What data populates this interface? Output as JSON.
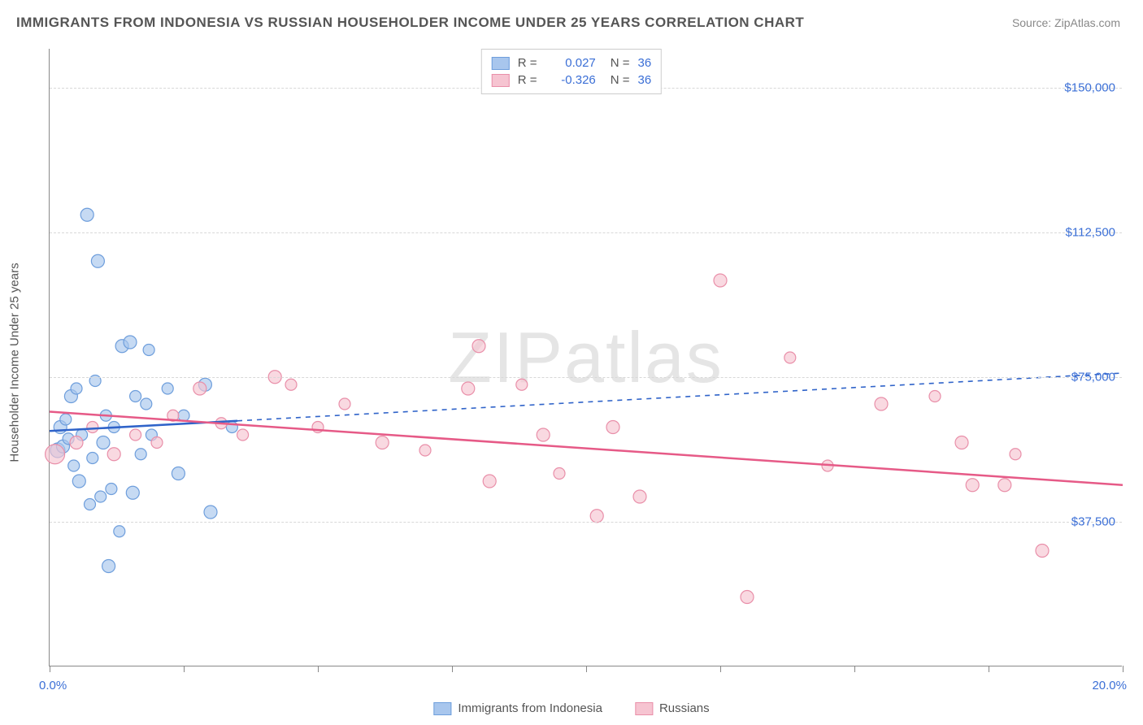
{
  "title": "IMMIGRANTS FROM INDONESIA VS RUSSIAN HOUSEHOLDER INCOME UNDER 25 YEARS CORRELATION CHART",
  "source_label": "Source: ZipAtlas.com",
  "watermark": "ZIPatlas",
  "yaxis_title": "Householder Income Under 25 years",
  "chart": {
    "type": "scatter",
    "xlim": [
      0,
      20
    ],
    "ylim": [
      0,
      160000
    ],
    "xtick_positions": [
      0,
      2.5,
      5,
      7.5,
      10,
      12.5,
      15,
      17.5,
      20
    ],
    "ytick_values": [
      37500,
      75000,
      112500,
      150000
    ],
    "ytick_labels": [
      "$37,500",
      "$75,000",
      "$112,500",
      "$150,000"
    ],
    "xaxis_label_left": "0.0%",
    "xaxis_label_right": "20.0%",
    "background_color": "#ffffff",
    "grid_color": "#d8d8d8",
    "series": [
      {
        "name": "Immigrants from Indonesia",
        "color_fill": "#a8c6ed",
        "color_stroke": "#6e9edc",
        "marker_opacity": 0.65,
        "R": "0.027",
        "N": "36",
        "trendline": {
          "color": "#2f63c9",
          "width": 2.5,
          "solid_until_x": 3.5,
          "dash_after": true,
          "y_at_x0": 61000,
          "y_at_xmax": 76000
        },
        "points": [
          {
            "x": 0.15,
            "y": 56000,
            "r": 9
          },
          {
            "x": 0.2,
            "y": 62000,
            "r": 8
          },
          {
            "x": 0.25,
            "y": 57000,
            "r": 8
          },
          {
            "x": 0.3,
            "y": 64000,
            "r": 7
          },
          {
            "x": 0.35,
            "y": 59000,
            "r": 7
          },
          {
            "x": 0.4,
            "y": 70000,
            "r": 8
          },
          {
            "x": 0.45,
            "y": 52000,
            "r": 7
          },
          {
            "x": 0.5,
            "y": 72000,
            "r": 7
          },
          {
            "x": 0.55,
            "y": 48000,
            "r": 8
          },
          {
            "x": 0.6,
            "y": 60000,
            "r": 7
          },
          {
            "x": 0.7,
            "y": 117000,
            "r": 8
          },
          {
            "x": 0.75,
            "y": 42000,
            "r": 7
          },
          {
            "x": 0.8,
            "y": 54000,
            "r": 7
          },
          {
            "x": 0.85,
            "y": 74000,
            "r": 7
          },
          {
            "x": 0.9,
            "y": 105000,
            "r": 8
          },
          {
            "x": 0.95,
            "y": 44000,
            "r": 7
          },
          {
            "x": 1.0,
            "y": 58000,
            "r": 8
          },
          {
            "x": 1.05,
            "y": 65000,
            "r": 7
          },
          {
            "x": 1.1,
            "y": 26000,
            "r": 8
          },
          {
            "x": 1.15,
            "y": 46000,
            "r": 7
          },
          {
            "x": 1.2,
            "y": 62000,
            "r": 7
          },
          {
            "x": 1.3,
            "y": 35000,
            "r": 7
          },
          {
            "x": 1.35,
            "y": 83000,
            "r": 8
          },
          {
            "x": 1.5,
            "y": 84000,
            "r": 8
          },
          {
            "x": 1.55,
            "y": 45000,
            "r": 8
          },
          {
            "x": 1.6,
            "y": 70000,
            "r": 7
          },
          {
            "x": 1.7,
            "y": 55000,
            "r": 7
          },
          {
            "x": 1.8,
            "y": 68000,
            "r": 7
          },
          {
            "x": 1.85,
            "y": 82000,
            "r": 7
          },
          {
            "x": 1.9,
            "y": 60000,
            "r": 7
          },
          {
            "x": 2.2,
            "y": 72000,
            "r": 7
          },
          {
            "x": 2.4,
            "y": 50000,
            "r": 8
          },
          {
            "x": 2.5,
            "y": 65000,
            "r": 7
          },
          {
            "x": 2.9,
            "y": 73000,
            "r": 8
          },
          {
            "x": 3.0,
            "y": 40000,
            "r": 8
          },
          {
            "x": 3.4,
            "y": 62000,
            "r": 7
          }
        ]
      },
      {
        "name": "Russians",
        "color_fill": "#f6c4d1",
        "color_stroke": "#e98fa9",
        "marker_opacity": 0.65,
        "R": "-0.326",
        "N": "36",
        "trendline": {
          "color": "#e65a87",
          "width": 2.5,
          "solid_until_x": 20,
          "dash_after": false,
          "y_at_x0": 66000,
          "y_at_xmax": 47000
        },
        "points": [
          {
            "x": 0.1,
            "y": 55000,
            "r": 12
          },
          {
            "x": 0.5,
            "y": 58000,
            "r": 8
          },
          {
            "x": 0.8,
            "y": 62000,
            "r": 7
          },
          {
            "x": 1.2,
            "y": 55000,
            "r": 8
          },
          {
            "x": 1.6,
            "y": 60000,
            "r": 7
          },
          {
            "x": 2.0,
            "y": 58000,
            "r": 7
          },
          {
            "x": 2.3,
            "y": 65000,
            "r": 7
          },
          {
            "x": 2.8,
            "y": 72000,
            "r": 8
          },
          {
            "x": 3.2,
            "y": 63000,
            "r": 7
          },
          {
            "x": 3.6,
            "y": 60000,
            "r": 7
          },
          {
            "x": 4.2,
            "y": 75000,
            "r": 8
          },
          {
            "x": 4.5,
            "y": 73000,
            "r": 7
          },
          {
            "x": 5.0,
            "y": 62000,
            "r": 7
          },
          {
            "x": 5.5,
            "y": 68000,
            "r": 7
          },
          {
            "x": 6.2,
            "y": 58000,
            "r": 8
          },
          {
            "x": 7.0,
            "y": 56000,
            "r": 7
          },
          {
            "x": 7.8,
            "y": 72000,
            "r": 8
          },
          {
            "x": 8.0,
            "y": 83000,
            "r": 8
          },
          {
            "x": 8.2,
            "y": 48000,
            "r": 8
          },
          {
            "x": 8.8,
            "y": 73000,
            "r": 7
          },
          {
            "x": 9.2,
            "y": 60000,
            "r": 8
          },
          {
            "x": 9.5,
            "y": 50000,
            "r": 7
          },
          {
            "x": 10.2,
            "y": 39000,
            "r": 8
          },
          {
            "x": 10.5,
            "y": 62000,
            "r": 8
          },
          {
            "x": 11.0,
            "y": 44000,
            "r": 8
          },
          {
            "x": 12.5,
            "y": 100000,
            "r": 8
          },
          {
            "x": 13.0,
            "y": 18000,
            "r": 8
          },
          {
            "x": 13.8,
            "y": 80000,
            "r": 7
          },
          {
            "x": 14.5,
            "y": 52000,
            "r": 7
          },
          {
            "x": 15.5,
            "y": 68000,
            "r": 8
          },
          {
            "x": 16.5,
            "y": 70000,
            "r": 7
          },
          {
            "x": 17.0,
            "y": 58000,
            "r": 8
          },
          {
            "x": 17.2,
            "y": 47000,
            "r": 8
          },
          {
            "x": 17.8,
            "y": 47000,
            "r": 8
          },
          {
            "x": 18.0,
            "y": 55000,
            "r": 7
          },
          {
            "x": 18.5,
            "y": 30000,
            "r": 8
          }
        ]
      }
    ]
  },
  "legend_bottom": [
    {
      "label": "Immigrants from Indonesia",
      "fill": "#a8c6ed",
      "stroke": "#6e9edc"
    },
    {
      "label": "Russians",
      "fill": "#f6c4d1",
      "stroke": "#e98fa9"
    }
  ]
}
